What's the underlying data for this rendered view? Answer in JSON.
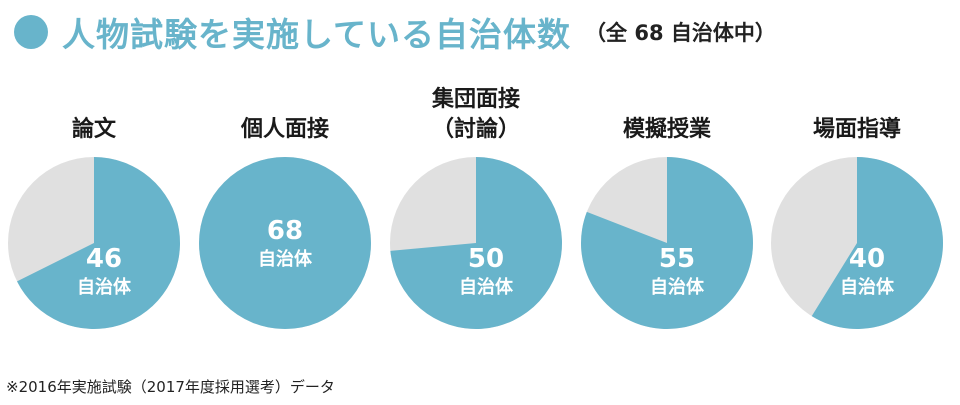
{
  "header": {
    "title": "人物試験を実施している自治体数",
    "subtitle": "（全 68 自治体中）"
  },
  "colors": {
    "accent": "#68b4cb",
    "remainder": "#e0e0e0"
  },
  "chart_data": {
    "type": "pie",
    "total": 68,
    "unit": "自治体",
    "categories": [
      "論文",
      "個人面接",
      "集団面接（討論）",
      "模擬授業",
      "場面指導"
    ],
    "label_lines": [
      [
        "論文"
      ],
      [
        "個人面接"
      ],
      [
        "集団面接",
        "（討論）"
      ],
      [
        "模擬授業"
      ],
      [
        "場面指導"
      ]
    ],
    "values": [
      46,
      68,
      50,
      55,
      40
    ]
  },
  "footnote": "※2016年実施試験（2017年度採用選考）データ"
}
